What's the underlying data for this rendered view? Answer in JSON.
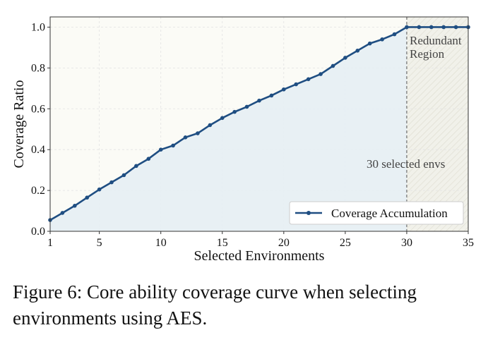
{
  "chart_data": {
    "type": "line",
    "xlabel": "Selected Environments",
    "ylabel": "Coverage Ratio",
    "xlim": [
      1,
      35
    ],
    "ylim": [
      0,
      1.05
    ],
    "x_ticks": [
      1,
      5,
      10,
      15,
      20,
      25,
      30,
      35
    ],
    "y_ticks": [
      0.0,
      0.2,
      0.4,
      0.6,
      0.8,
      1.0
    ],
    "grid": true,
    "legend_position": "bottom-right",
    "series": [
      {
        "name": "Coverage Accumulation",
        "color": "#1f4e82",
        "x": [
          1,
          2,
          3,
          4,
          5,
          6,
          7,
          8,
          9,
          10,
          11,
          12,
          13,
          14,
          15,
          16,
          17,
          18,
          19,
          20,
          21,
          22,
          23,
          24,
          25,
          26,
          27,
          28,
          29,
          30,
          31,
          32,
          33,
          34,
          35
        ],
        "values": [
          0.055,
          0.09,
          0.125,
          0.165,
          0.205,
          0.24,
          0.275,
          0.32,
          0.355,
          0.4,
          0.42,
          0.46,
          0.48,
          0.52,
          0.555,
          0.585,
          0.61,
          0.64,
          0.665,
          0.695,
          0.72,
          0.745,
          0.77,
          0.81,
          0.85,
          0.885,
          0.92,
          0.94,
          0.965,
          1.0,
          1.0,
          1.0,
          1.0,
          1.0,
          1.0
        ]
      }
    ],
    "annotations": {
      "threshold_x": 30,
      "threshold_label": "30 selected envs",
      "region_label_line1": "Redundant",
      "region_label_line2": "Region"
    }
  },
  "colors": {
    "line": "#1f4e82",
    "area_fill": "#e6eef4",
    "plot_bg": "#fbfbf6",
    "redundant_fill": "#f0f0ea",
    "grid": "#e2e2e2",
    "threshold_line": "#555555"
  },
  "caption": "Figure 6: Core ability coverage curve when selecting environments using AES."
}
